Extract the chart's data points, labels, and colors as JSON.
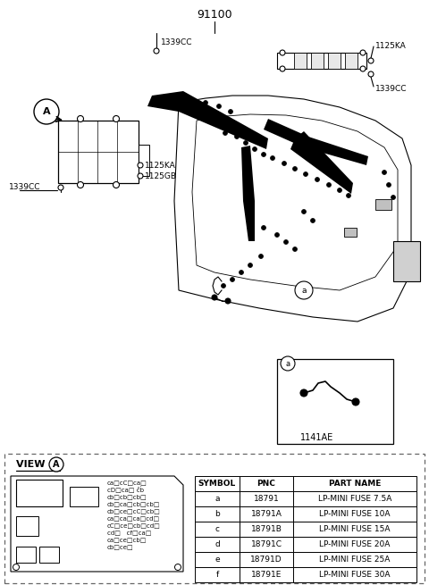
{
  "bg": "#ffffff",
  "title": "91100",
  "table_headers": [
    "SYMBOL",
    "PNC",
    "PART NAME"
  ],
  "table_rows": [
    [
      "a",
      "18791",
      "LP-MINI FUSE 7.5A"
    ],
    [
      "b",
      "18791A",
      "LP-MINI FUSE 10A"
    ],
    [
      "c",
      "18791B",
      "LP-MINI FUSE 15A"
    ],
    [
      "d",
      "18791C",
      "LP-MINI FUSE 20A"
    ],
    [
      "e",
      "18791D",
      "LP-MINI FUSE 25A"
    ],
    [
      "f",
      "18791E",
      "LP-MINI FUSE 30A"
    ]
  ],
  "label_1339CC_top": "1339CC",
  "label_1125KA_top": "1125KA",
  "label_1339CC_right": "1339CC",
  "label_A": "A",
  "label_1339CC_left": "1339CC",
  "label_1125KA": "1125KA",
  "label_1125GB": "1125GB",
  "label_a_circle": "a",
  "label_a_box": "a",
  "label_1141AE": "1141AE",
  "view_label": "VIEW",
  "fuse_text": [
    "ca◌cC◌ca◌",
    "cD◌ca◌ ĉḃ",
    "cb◌cb◌cb◌",
    "cb◌ca◌cb◌cb◌",
    "cb◌ce◌cC◌cb◌",
    "ca◌ca◌ca◌cd◌",
    "cC◌ce◌cb◌cd◌",
    "cd◌   cf◌ca◌",
    "ca◌ce◌cb◌",
    "cb◌ce◌"
  ]
}
